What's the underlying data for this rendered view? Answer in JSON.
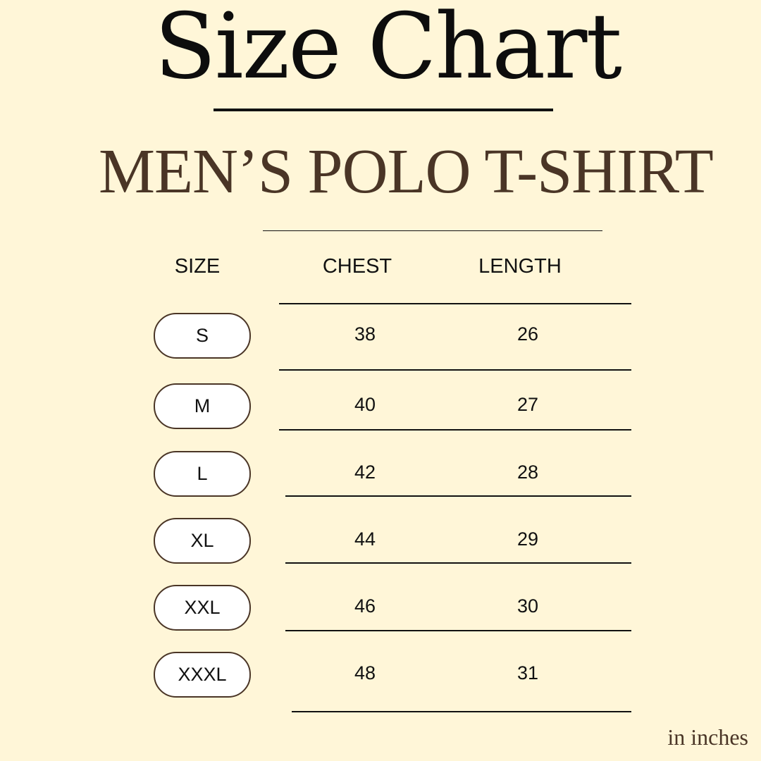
{
  "title": "Size Chart",
  "subtitle": "MEN’S POLO T-SHIRT",
  "headers": [
    "SIZE",
    "CHEST",
    "LENGTH"
  ],
  "rows": [
    {
      "size": "S",
      "chest": "38",
      "length": "26"
    },
    {
      "size": "M",
      "chest": "40",
      "length": "27"
    },
    {
      "size": "L",
      "chest": "42",
      "length": "28"
    },
    {
      "size": "XL",
      "chest": "44",
      "length": "29"
    },
    {
      "size": "XXL",
      "chest": "46",
      "length": "30"
    },
    {
      "size": "XXXL",
      "chest": "48",
      "length": "31"
    }
  ],
  "unit_note": "in inches",
  "colors": {
    "background": "#fff6d8",
    "accent": "#4a3526",
    "text": "#111111"
  }
}
